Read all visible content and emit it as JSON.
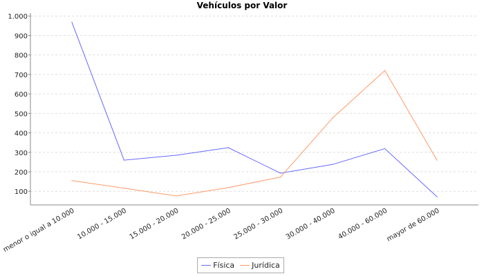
{
  "chart_data": {
    "type": "line",
    "title": "Vehículos por Valor",
    "xlabel": "",
    "ylabel": "",
    "categories": [
      "menor o igual a 10.000",
      "10.000 - 15.000",
      "15.000 - 20.000",
      "20.000 - 25.000",
      "25.000 - 30.000",
      "30.000 - 40.000",
      "40.000 - 60.000",
      "mayor de 60.000"
    ],
    "yticks": [
      100,
      200,
      300,
      400,
      500,
      600,
      700,
      800,
      900,
      1000
    ],
    "ytick_labels": [
      "100",
      "200",
      "300",
      "400",
      "500",
      "600",
      "700",
      "800",
      "900",
      "1.000"
    ],
    "ylim": [
      30,
      1015
    ],
    "grid": true,
    "legend_position": "bottom",
    "series": [
      {
        "name": "Física",
        "color": "#6666ff",
        "values": [
          968,
          260,
          285,
          324,
          193,
          238,
          319,
          72
        ]
      },
      {
        "name": "Jurídica",
        "color": "#ff9966",
        "values": [
          155,
          116,
          76,
          119,
          173,
          477,
          720,
          260
        ]
      }
    ]
  }
}
